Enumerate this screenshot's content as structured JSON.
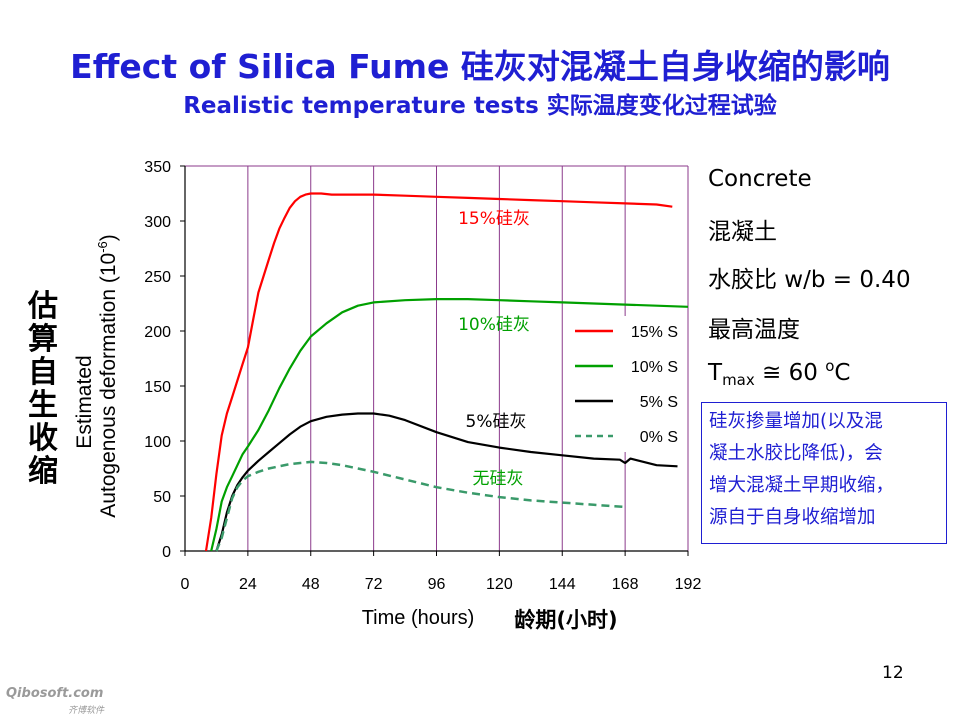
{
  "slide": {
    "title": "Effect of Silica Fume 硅灰对混凝土自身收缩的影响",
    "subtitle": "Realistic temperature tests 实际温度变化过程试验",
    "page_number": "12",
    "brand": "Qibosoft.com",
    "brand_sub": "齐博软件"
  },
  "side_label_cn": [
    "估",
    "算",
    "自",
    "生",
    "收",
    "缩"
  ],
  "info": {
    "line1": "Concrete",
    "line2": "混凝土",
    "line3": "水胶比 w/b = 0.40",
    "line4": "最高温度",
    "tmax_T": "T",
    "tmax_sub": "max",
    "tmax_rest": " ≅ 60 ",
    "tmax_o": "o",
    "tmax_C": "C"
  },
  "note": {
    "line1": "硅灰掺量增加(以及混",
    "line2": "凝土水胶比降低)，会",
    "line3": "增大混凝土早期收缩，",
    "line4": "源自于自身收缩增加"
  },
  "chart_data": {
    "type": "line",
    "xlabel": "Time (hours)",
    "xlabel_cn": "龄期(小时)",
    "ylabel_line1": "Estimated",
    "ylabel_line2": "Autogenous deformation (10",
    "ylabel_sup": "-6",
    "ylabel_end": ")",
    "xlim": [
      0,
      192
    ],
    "ylim": [
      0,
      350
    ],
    "xticks": [
      "0",
      "24",
      "48",
      "72",
      "96",
      "120",
      "144",
      "168",
      "192"
    ],
    "yticks": [
      "0",
      "50",
      "100",
      "150",
      "200",
      "250",
      "300",
      "350"
    ],
    "grid": "vertical",
    "legend_position": "right",
    "series": [
      {
        "name": "15% S",
        "label": "15%硅灰",
        "color": "#ff0000",
        "dash": "solid",
        "x": [
          8,
          10,
          12,
          14,
          16,
          18,
          20,
          22,
          24,
          26,
          28,
          30,
          32,
          34,
          36,
          38,
          40,
          42,
          44,
          46,
          48,
          52,
          56,
          60,
          66,
          72,
          84,
          96,
          108,
          120,
          132,
          144,
          156,
          168,
          180,
          186
        ],
        "y": [
          0,
          30,
          70,
          105,
          125,
          140,
          155,
          170,
          185,
          210,
          235,
          250,
          265,
          280,
          293,
          303,
          312,
          318,
          322,
          324,
          325,
          325,
          324,
          324,
          324,
          324,
          323,
          322,
          321,
          320,
          319,
          318,
          317,
          316,
          315,
          313
        ]
      },
      {
        "name": "10% S",
        "label": "10%硅灰",
        "color": "#00a000",
        "dash": "solid",
        "x": [
          10,
          12,
          14,
          16,
          18,
          20,
          22,
          24,
          28,
          32,
          36,
          40,
          44,
          48,
          54,
          60,
          66,
          72,
          84,
          96,
          108,
          120,
          132,
          144,
          156,
          168,
          180,
          192
        ],
        "y": [
          0,
          20,
          45,
          58,
          68,
          78,
          88,
          95,
          110,
          128,
          148,
          166,
          182,
          195,
          207,
          217,
          223,
          226,
          228,
          229,
          229,
          228,
          227,
          226,
          225,
          224,
          223,
          222
        ]
      },
      {
        "name": "5% S",
        "label": "5%硅灰",
        "color": "#000000",
        "dash": "solid",
        "x": [
          12,
          14,
          16,
          18,
          20,
          22,
          24,
          28,
          32,
          36,
          40,
          44,
          48,
          54,
          60,
          66,
          72,
          78,
          84,
          96,
          108,
          120,
          132,
          144,
          156,
          166,
          168,
          170,
          180,
          188
        ],
        "y": [
          0,
          15,
          35,
          50,
          60,
          67,
          73,
          82,
          90,
          98,
          106,
          113,
          118,
          122,
          124,
          125,
          125,
          123,
          119,
          108,
          99,
          94,
          90,
          87,
          84,
          83,
          80,
          84,
          78,
          77
        ]
      },
      {
        "name": "0% S",
        "label": "无硅灰",
        "color": "#3a9a6a",
        "dash": "dashed",
        "x": [
          12,
          14,
          16,
          18,
          20,
          22,
          24,
          28,
          32,
          36,
          40,
          44,
          48,
          54,
          60,
          66,
          72,
          84,
          96,
          108,
          120,
          132,
          144,
          156,
          168
        ],
        "y": [
          0,
          12,
          30,
          48,
          58,
          64,
          68,
          72,
          75,
          77,
          79,
          80,
          81,
          80,
          78,
          75,
          72,
          65,
          58,
          53,
          49,
          46,
          44,
          42,
          40
        ]
      }
    ]
  }
}
